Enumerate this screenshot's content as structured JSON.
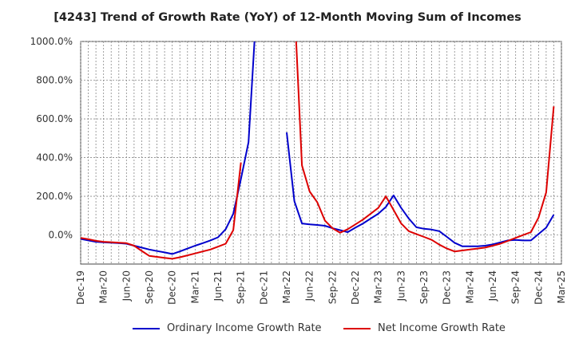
{
  "chart_data": {
    "type": "line",
    "title": "[4243]  Trend of Growth Rate (YoY) of 12-Month Moving Sum of Incomes",
    "xlabel": "",
    "ylabel": "",
    "ylim": [
      -150,
      1000
    ],
    "yticks": [
      0,
      200,
      400,
      600,
      800,
      1000
    ],
    "ytick_labels": [
      "0.0%",
      "200.0%",
      "400.0%",
      "600.0%",
      "800.0%",
      "1000.0%"
    ],
    "x_tick_labels": [
      "Dec-19",
      "Mar-20",
      "Jun-20",
      "Sep-20",
      "Dec-20",
      "Mar-21",
      "Jun-21",
      "Sep-21",
      "Dec-21",
      "Mar-22",
      "Jun-22",
      "Sep-22",
      "Dec-22",
      "Mar-23",
      "Jun-23",
      "Sep-23",
      "Dec-23",
      "Mar-24",
      "Jun-24",
      "Sep-24",
      "Dec-24",
      "Mar-25"
    ],
    "x": [
      "Dec-19",
      "Jan-20",
      "Feb-20",
      "Mar-20",
      "Apr-20",
      "May-20",
      "Jun-20",
      "Jul-20",
      "Aug-20",
      "Sep-20",
      "Oct-20",
      "Nov-20",
      "Dec-20",
      "Jan-21",
      "Feb-21",
      "Mar-21",
      "Apr-21",
      "May-21",
      "Jun-21",
      "Jul-21",
      "Aug-21",
      "Sep-21",
      "Oct-21",
      "Nov-21",
      "Dec-21",
      "Jan-22",
      "Feb-22",
      "Mar-22",
      "Apr-22",
      "May-22",
      "Jun-22",
      "Jul-22",
      "Aug-22",
      "Sep-22",
      "Oct-22",
      "Nov-22",
      "Dec-22",
      "Jan-23",
      "Feb-23",
      "Mar-23",
      "Apr-23",
      "May-23",
      "Jun-23",
      "Jul-23",
      "Aug-23",
      "Sep-23",
      "Oct-23",
      "Nov-23",
      "Dec-23",
      "Jan-24",
      "Feb-24",
      "Mar-24",
      "Apr-24",
      "May-24",
      "Jun-24",
      "Jul-24",
      "Aug-24",
      "Sep-24",
      "Oct-24",
      "Nov-24",
      "Dec-24",
      "Jan-25",
      "Feb-25",
      "Mar-25"
    ],
    "grid": true,
    "legend_position": "bottom",
    "series": [
      {
        "name": "Ordinary Income Growth Rate",
        "color": "#0000cc",
        "values": [
          -20,
          -28,
          -35,
          -38,
          -40,
          -42,
          -45,
          -55,
          -65,
          -75,
          -83,
          -90,
          -98,
          -85,
          -70,
          -55,
          -42,
          -28,
          -12,
          30,
          110,
          290,
          480,
          1150,
          null,
          null,
          null,
          530,
          175,
          60,
          55,
          52,
          48,
          35,
          25,
          15,
          38,
          60,
          85,
          110,
          145,
          205,
          140,
          85,
          40,
          32,
          28,
          20,
          -10,
          -40,
          -58,
          -58,
          -58,
          -55,
          -48,
          -38,
          -28,
          -25,
          -28,
          -28,
          5,
          38,
          105,
          null
        ]
      },
      {
        "name": "Net Income Growth Rate",
        "color": "#dd0000",
        "values": [
          -15,
          -22,
          -30,
          -35,
          -37,
          -40,
          -42,
          -55,
          -82,
          -108,
          -113,
          -118,
          -123,
          -115,
          -105,
          -95,
          -85,
          -75,
          -60,
          -45,
          25,
          375,
          null,
          null,
          null,
          null,
          null,
          null,
          1200,
          360,
          225,
          170,
          75,
          35,
          12,
          30,
          55,
          80,
          110,
          140,
          200,
          130,
          60,
          20,
          5,
          -10,
          -25,
          -50,
          -70,
          -85,
          -80,
          -75,
          -70,
          -65,
          -55,
          -45,
          -30,
          -15,
          0,
          15,
          90,
          220,
          665,
          null
        ]
      }
    ]
  }
}
